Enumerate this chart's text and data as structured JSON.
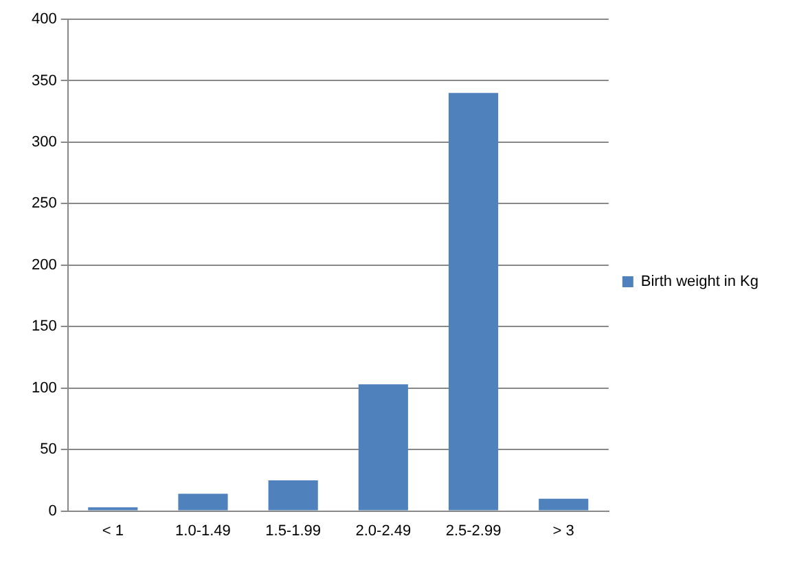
{
  "chart_data": {
    "type": "bar",
    "categories": [
      "< 1",
      "1.0-1.49",
      "1.5-1.99",
      "2.0-2.49",
      "2.5-2.99",
      "> 3"
    ],
    "series": [
      {
        "name": "Birth weight in Kg",
        "color": "#4f81bd",
        "values": [
          3,
          14,
          25,
          103,
          340,
          10
        ]
      }
    ],
    "ylim": [
      0,
      400
    ],
    "yticks": [
      0,
      50,
      100,
      150,
      200,
      250,
      300,
      350,
      400
    ],
    "grid": "y",
    "legend": "right"
  }
}
